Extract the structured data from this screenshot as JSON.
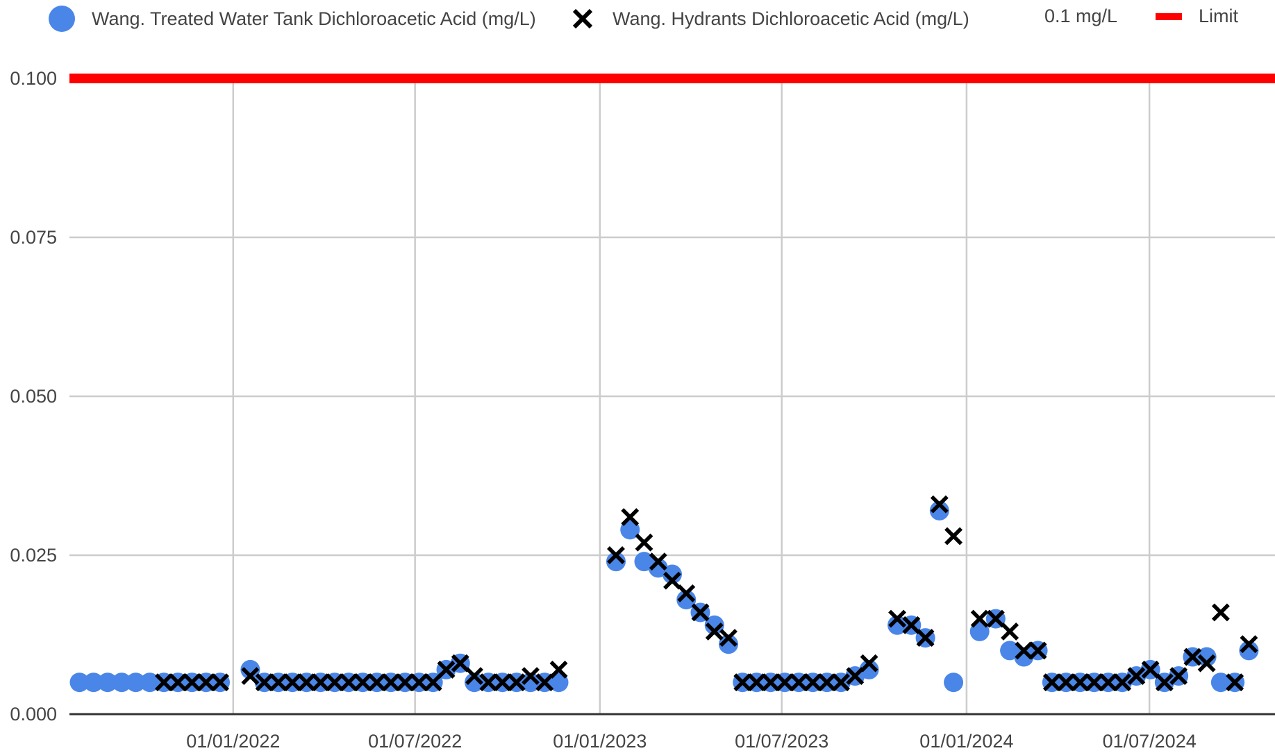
{
  "legend": {
    "treated_label": "Wang. Treated Water Tank Dichloroacetic Acid (mg/L)",
    "hydrants_label": "Wang. Hydrants Dichloroacetic Acid (mg/L)",
    "limit_value_label": "0.1 mg/L",
    "limit_label": "Limit"
  },
  "colors": {
    "treated": "#4a86e8",
    "hydrants": "#000000",
    "limit": "#ff0000",
    "grid": "#cccccc",
    "axis": "#333333"
  },
  "chart_data": {
    "type": "scatter",
    "title": "",
    "xlabel": "",
    "ylabel": "",
    "x_axis": {
      "type": "date",
      "range": [
        "2021-07-22",
        "2024-11-03"
      ],
      "tick_labels": [
        "01/01/2022",
        "01/07/2022",
        "01/01/2023",
        "01/07/2023",
        "01/01/2024",
        "01/07/2024"
      ],
      "tick_dates": [
        "2022-01-01",
        "2022-07-01",
        "2023-01-01",
        "2023-07-01",
        "2024-01-01",
        "2024-07-01"
      ]
    },
    "y_axis": {
      "range": [
        0,
        0.1
      ],
      "tick_labels": [
        "0.000",
        "0.025",
        "0.050",
        "0.075",
        "0.100"
      ],
      "ticks": [
        0,
        0.025,
        0.05,
        0.075,
        0.1
      ]
    },
    "grid": true,
    "legend_position": "top",
    "series": [
      {
        "name": "Wang. Treated Water Tank Dichloroacetic Acid (mg/L)",
        "marker": "circle",
        "points": [
          [
            "2021-08-01",
            0.005
          ],
          [
            "2021-08-15",
            0.005
          ],
          [
            "2021-08-29",
            0.005
          ],
          [
            "2021-09-12",
            0.005
          ],
          [
            "2021-09-26",
            0.005
          ],
          [
            "2021-10-10",
            0.005
          ],
          [
            "2021-10-24",
            0.005
          ],
          [
            "2021-11-07",
            0.005
          ],
          [
            "2021-11-21",
            0.005
          ],
          [
            "2021-12-05",
            0.005
          ],
          [
            "2021-12-19",
            0.005
          ],
          [
            "2022-01-18",
            0.007
          ],
          [
            "2022-02-01",
            0.005
          ],
          [
            "2022-02-15",
            0.005
          ],
          [
            "2022-03-01",
            0.005
          ],
          [
            "2022-03-15",
            0.005
          ],
          [
            "2022-03-29",
            0.005
          ],
          [
            "2022-04-12",
            0.005
          ],
          [
            "2022-04-26",
            0.005
          ],
          [
            "2022-05-10",
            0.005
          ],
          [
            "2022-05-24",
            0.005
          ],
          [
            "2022-06-07",
            0.005
          ],
          [
            "2022-06-21",
            0.005
          ],
          [
            "2022-07-05",
            0.005
          ],
          [
            "2022-07-19",
            0.005
          ],
          [
            "2022-08-01",
            0.007
          ],
          [
            "2022-08-15",
            0.008
          ],
          [
            "2022-08-29",
            0.005
          ],
          [
            "2022-09-12",
            0.005
          ],
          [
            "2022-09-26",
            0.005
          ],
          [
            "2022-10-10",
            0.005
          ],
          [
            "2022-10-24",
            0.005
          ],
          [
            "2022-11-07",
            0.005
          ],
          [
            "2022-11-21",
            0.005
          ],
          [
            "2023-01-17",
            0.024
          ],
          [
            "2023-01-31",
            0.029
          ],
          [
            "2023-02-14",
            0.024
          ],
          [
            "2023-02-28",
            0.023
          ],
          [
            "2023-03-14",
            0.022
          ],
          [
            "2023-03-28",
            0.018
          ],
          [
            "2023-04-11",
            0.016
          ],
          [
            "2023-04-25",
            0.014
          ],
          [
            "2023-05-09",
            0.011
          ],
          [
            "2023-05-23",
            0.005
          ],
          [
            "2023-06-06",
            0.005
          ],
          [
            "2023-06-20",
            0.005
          ],
          [
            "2023-07-04",
            0.005
          ],
          [
            "2023-07-18",
            0.005
          ],
          [
            "2023-08-01",
            0.005
          ],
          [
            "2023-08-15",
            0.005
          ],
          [
            "2023-08-29",
            0.005
          ],
          [
            "2023-09-12",
            0.006
          ],
          [
            "2023-09-26",
            0.007
          ],
          [
            "2023-10-24",
            0.014
          ],
          [
            "2023-11-07",
            0.014
          ],
          [
            "2023-11-21",
            0.012
          ],
          [
            "2023-12-05",
            0.032
          ],
          [
            "2023-12-19",
            0.005
          ],
          [
            "2024-01-14",
            0.013
          ],
          [
            "2024-01-30",
            0.015
          ],
          [
            "2024-02-13",
            0.01
          ],
          [
            "2024-02-27",
            0.009
          ],
          [
            "2024-03-12",
            0.01
          ],
          [
            "2024-03-26",
            0.005
          ],
          [
            "2024-04-09",
            0.005
          ],
          [
            "2024-04-23",
            0.005
          ],
          [
            "2024-05-07",
            0.005
          ],
          [
            "2024-05-21",
            0.005
          ],
          [
            "2024-06-04",
            0.005
          ],
          [
            "2024-06-18",
            0.006
          ],
          [
            "2024-07-02",
            0.007
          ],
          [
            "2024-07-16",
            0.005
          ],
          [
            "2024-07-30",
            0.006
          ],
          [
            "2024-08-13",
            0.009
          ],
          [
            "2024-08-27",
            0.009
          ],
          [
            "2024-09-10",
            0.005
          ],
          [
            "2024-09-24",
            0.005
          ],
          [
            "2024-10-08",
            0.01
          ]
        ]
      },
      {
        "name": "Wang. Hydrants Dichloroacetic Acid (mg/L)",
        "marker": "x",
        "points": [
          [
            "2021-10-24",
            0.005
          ],
          [
            "2021-11-07",
            0.005
          ],
          [
            "2021-11-21",
            0.005
          ],
          [
            "2021-12-05",
            0.005
          ],
          [
            "2021-12-19",
            0.005
          ],
          [
            "2022-01-18",
            0.006
          ],
          [
            "2022-02-01",
            0.005
          ],
          [
            "2022-02-15",
            0.005
          ],
          [
            "2022-03-01",
            0.005
          ],
          [
            "2022-03-15",
            0.005
          ],
          [
            "2022-03-29",
            0.005
          ],
          [
            "2022-04-12",
            0.005
          ],
          [
            "2022-04-26",
            0.005
          ],
          [
            "2022-05-10",
            0.005
          ],
          [
            "2022-05-24",
            0.005
          ],
          [
            "2022-06-07",
            0.005
          ],
          [
            "2022-06-21",
            0.005
          ],
          [
            "2022-07-05",
            0.005
          ],
          [
            "2022-07-19",
            0.005
          ],
          [
            "2022-08-01",
            0.007
          ],
          [
            "2022-08-15",
            0.008
          ],
          [
            "2022-08-29",
            0.006
          ],
          [
            "2022-09-12",
            0.005
          ],
          [
            "2022-09-26",
            0.005
          ],
          [
            "2022-10-10",
            0.005
          ],
          [
            "2022-10-24",
            0.006
          ],
          [
            "2022-11-07",
            0.005
          ],
          [
            "2022-11-21",
            0.007
          ],
          [
            "2023-01-17",
            0.025
          ],
          [
            "2023-01-31",
            0.031
          ],
          [
            "2023-02-14",
            0.027
          ],
          [
            "2023-02-28",
            0.024
          ],
          [
            "2023-03-14",
            0.021
          ],
          [
            "2023-03-28",
            0.019
          ],
          [
            "2023-04-11",
            0.016
          ],
          [
            "2023-04-25",
            0.013
          ],
          [
            "2023-05-09",
            0.012
          ],
          [
            "2023-05-23",
            0.005
          ],
          [
            "2023-06-06",
            0.005
          ],
          [
            "2023-06-20",
            0.005
          ],
          [
            "2023-07-04",
            0.005
          ],
          [
            "2023-07-18",
            0.005
          ],
          [
            "2023-08-01",
            0.005
          ],
          [
            "2023-08-15",
            0.005
          ],
          [
            "2023-08-29",
            0.005
          ],
          [
            "2023-09-12",
            0.006
          ],
          [
            "2023-09-26",
            0.008
          ],
          [
            "2023-10-24",
            0.015
          ],
          [
            "2023-11-07",
            0.014
          ],
          [
            "2023-11-21",
            0.012
          ],
          [
            "2023-12-05",
            0.033
          ],
          [
            "2023-12-19",
            0.028
          ],
          [
            "2024-01-14",
            0.015
          ],
          [
            "2024-01-30",
            0.015
          ],
          [
            "2024-02-13",
            0.013
          ],
          [
            "2024-02-27",
            0.01
          ],
          [
            "2024-03-12",
            0.01
          ],
          [
            "2024-03-26",
            0.005
          ],
          [
            "2024-04-09",
            0.005
          ],
          [
            "2024-04-23",
            0.005
          ],
          [
            "2024-05-07",
            0.005
          ],
          [
            "2024-05-21",
            0.005
          ],
          [
            "2024-06-04",
            0.005
          ],
          [
            "2024-06-18",
            0.006
          ],
          [
            "2024-07-02",
            0.007
          ],
          [
            "2024-07-16",
            0.005
          ],
          [
            "2024-07-30",
            0.006
          ],
          [
            "2024-08-13",
            0.009
          ],
          [
            "2024-08-27",
            0.008
          ],
          [
            "2024-09-10",
            0.016
          ],
          [
            "2024-09-24",
            0.005
          ],
          [
            "2024-10-08",
            0.011
          ]
        ]
      }
    ],
    "reference_line": {
      "name": "Limit",
      "value": 0.1
    }
  }
}
